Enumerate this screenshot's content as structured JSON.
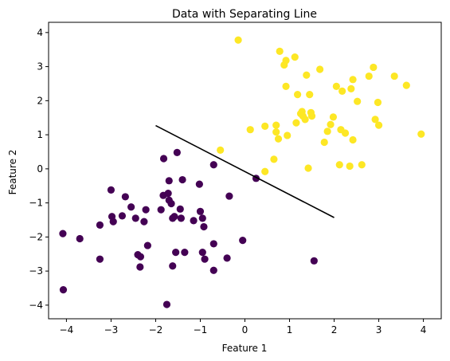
{
  "chart_data": {
    "type": "scatter",
    "title": "Data with Separating Line",
    "xlabel": "Feature 1",
    "ylabel": "Feature 2",
    "xlim": [
      -4.4,
      4.4
    ],
    "ylim": [
      -4.4,
      4.3
    ],
    "xticks": [
      -4,
      -3,
      -2,
      -1,
      0,
      1,
      2,
      3,
      4
    ],
    "xtick_labels": [
      "−4",
      "−3",
      "−2",
      "−1",
      "0",
      "1",
      "2",
      "3",
      "4"
    ],
    "yticks": [
      -4,
      -3,
      -2,
      -1,
      0,
      1,
      2,
      3,
      4
    ],
    "ytick_labels": [
      "−4",
      "−3",
      "−2",
      "−1",
      "0",
      "1",
      "2",
      "3",
      "4"
    ],
    "grid": false,
    "colors": {
      "class_0": "#440154",
      "class_1": "#fde725",
      "line": "#000000"
    },
    "series": [
      {
        "class": 0,
        "color": "#440154",
        "points": [
          [
            -4.08,
            -1.9
          ],
          [
            -3.7,
            -2.05
          ],
          [
            -4.07,
            -3.55
          ],
          [
            -3.25,
            -1.65
          ],
          [
            -3.25,
            -2.65
          ],
          [
            -3.0,
            -0.62
          ],
          [
            -2.98,
            -1.4
          ],
          [
            -2.95,
            -1.55
          ],
          [
            -2.75,
            -1.38
          ],
          [
            -2.68,
            -0.82
          ],
          [
            -2.55,
            -1.12
          ],
          [
            -2.45,
            -1.45
          ],
          [
            -2.4,
            -2.52
          ],
          [
            -2.34,
            -2.58
          ],
          [
            -2.35,
            -2.88
          ],
          [
            -2.26,
            -1.55
          ],
          [
            -2.22,
            -1.2
          ],
          [
            -2.18,
            -2.25
          ],
          [
            -1.88,
            -1.2
          ],
          [
            -1.83,
            -0.78
          ],
          [
            -1.82,
            0.3
          ],
          [
            -1.72,
            -0.72
          ],
          [
            -1.7,
            -0.35
          ],
          [
            -1.7,
            -0.92
          ],
          [
            -1.65,
            -1.02
          ],
          [
            -1.62,
            -1.45
          ],
          [
            -1.62,
            -2.85
          ],
          [
            -1.58,
            -1.4
          ],
          [
            -1.52,
            0.48
          ],
          [
            -1.55,
            -2.45
          ],
          [
            -1.45,
            -1.18
          ],
          [
            -1.43,
            -1.45
          ],
          [
            -1.4,
            -0.32
          ],
          [
            -1.35,
            -2.45
          ],
          [
            -1.15,
            -1.52
          ],
          [
            -1.02,
            -0.45
          ],
          [
            -1.0,
            -1.25
          ],
          [
            -0.95,
            -2.45
          ],
          [
            -0.92,
            -1.7
          ],
          [
            -0.9,
            -2.65
          ],
          [
            -0.95,
            -1.45
          ],
          [
            -0.7,
            0.12
          ],
          [
            -0.7,
            -2.2
          ],
          [
            -0.7,
            -2.98
          ],
          [
            -0.4,
            -2.62
          ],
          [
            -0.35,
            -0.8
          ],
          [
            -0.05,
            -2.1
          ],
          [
            0.25,
            -0.28
          ],
          [
            1.55,
            -2.7
          ],
          [
            -1.75,
            -3.98
          ]
        ]
      },
      {
        "class": 1,
        "color": "#fde725",
        "points": [
          [
            -0.15,
            3.78
          ],
          [
            -0.55,
            0.55
          ],
          [
            0.12,
            1.15
          ],
          [
            0.45,
            1.25
          ],
          [
            0.45,
            -0.08
          ],
          [
            0.65,
            0.28
          ],
          [
            0.7,
            1.28
          ],
          [
            0.7,
            1.08
          ],
          [
            0.75,
            0.88
          ],
          [
            0.78,
            3.45
          ],
          [
            0.88,
            3.05
          ],
          [
            0.92,
            3.18
          ],
          [
            0.92,
            2.42
          ],
          [
            0.95,
            0.98
          ],
          [
            1.12,
            3.28
          ],
          [
            1.15,
            1.35
          ],
          [
            1.18,
            2.18
          ],
          [
            1.25,
            1.62
          ],
          [
            1.28,
            1.68
          ],
          [
            1.3,
            1.55
          ],
          [
            1.35,
            1.45
          ],
          [
            1.38,
            2.75
          ],
          [
            1.42,
            0.02
          ],
          [
            1.45,
            2.18
          ],
          [
            1.48,
            1.65
          ],
          [
            1.5,
            1.55
          ],
          [
            1.68,
            2.92
          ],
          [
            1.78,
            0.78
          ],
          [
            1.85,
            1.1
          ],
          [
            1.92,
            1.3
          ],
          [
            1.98,
            1.52
          ],
          [
            2.05,
            2.42
          ],
          [
            2.15,
            1.15
          ],
          [
            2.18,
            2.28
          ],
          [
            2.12,
            0.12
          ],
          [
            2.25,
            1.05
          ],
          [
            2.35,
            0.08
          ],
          [
            2.38,
            2.35
          ],
          [
            2.42,
            2.62
          ],
          [
            2.42,
            0.85
          ],
          [
            2.52,
            1.98
          ],
          [
            2.62,
            0.12
          ],
          [
            2.78,
            2.72
          ],
          [
            2.88,
            2.98
          ],
          [
            2.92,
            1.45
          ],
          [
            2.98,
            1.95
          ],
          [
            3.0,
            1.28
          ],
          [
            3.35,
            2.72
          ],
          [
            3.62,
            2.45
          ],
          [
            3.95,
            1.02
          ]
        ]
      }
    ],
    "separating_line": {
      "x": [
        -2.0,
        2.0
      ],
      "y": [
        1.27,
        -1.43
      ]
    }
  }
}
